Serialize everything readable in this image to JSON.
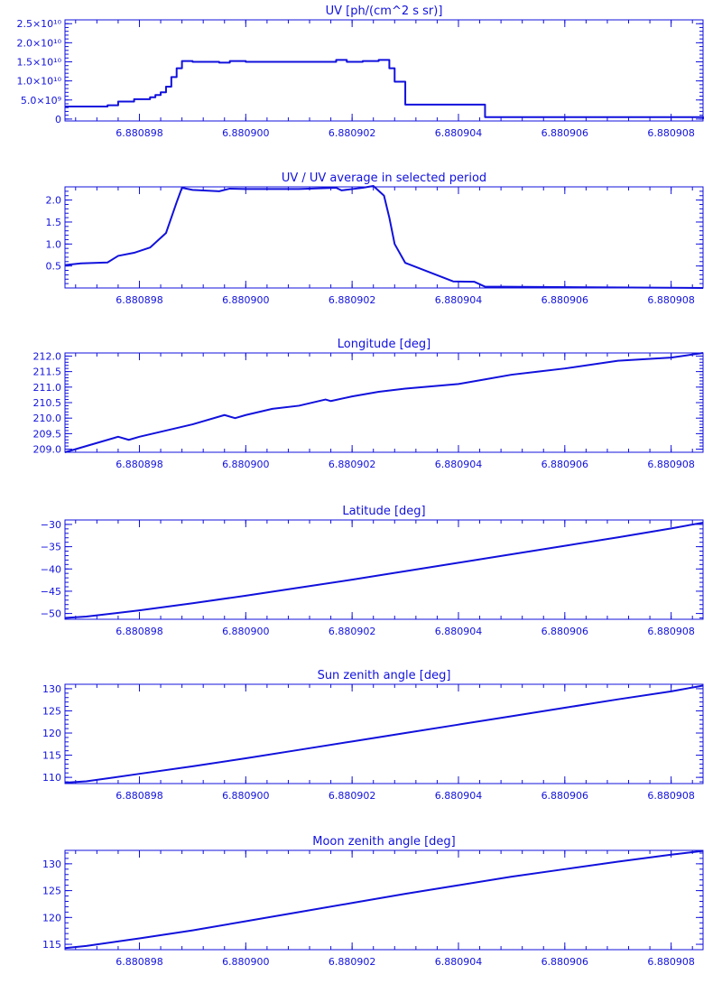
{
  "colors": {
    "axis": "#1111dd",
    "line": "#1111dd",
    "background": "#ffffff"
  },
  "chart_data": [
    {
      "type": "line",
      "title": "UV [ph/(cm^2 s sr)]",
      "xlim": [
        6.8808966,
        6.8809086
      ],
      "ylim": [
        -0.05,
        2.6
      ],
      "y_scale_label": "1e10",
      "x_ticks": [
        6.880898,
        6.8809,
        6.880902,
        6.880904,
        6.880906,
        6.880908
      ],
      "x_tick_labels": [
        "6.880898",
        "6.880900",
        "6.880902",
        "6.880904",
        "6.880906",
        "6.880908"
      ],
      "y_ticks": [
        0,
        0.5,
        1.0,
        1.5,
        2.0,
        2.5
      ],
      "y_tick_labels": [
        "0",
        "5.0×10⁹",
        "1.0×10¹⁰",
        "1.5×10¹⁰",
        "2.0×10¹⁰",
        "2.5×10¹⁰"
      ],
      "step": true,
      "series": [
        {
          "x": [
            6.8808966,
            6.8808974,
            6.8808976,
            6.8808979,
            6.8808982,
            6.8808983,
            6.8808984,
            6.8808985,
            6.8808986,
            6.8808987,
            6.8808988,
            6.880899,
            6.8808995,
            6.8808997,
            6.8809,
            6.880901,
            6.8809017,
            6.8809019,
            6.8809022,
            6.8809025,
            6.8809027,
            6.8809028,
            6.880903,
            6.8809045,
            6.8809086
          ],
          "y": [
            0.33,
            0.36,
            0.46,
            0.52,
            0.57,
            0.63,
            0.7,
            0.85,
            1.1,
            1.33,
            1.52,
            1.5,
            1.48,
            1.52,
            1.5,
            1.5,
            1.55,
            1.5,
            1.52,
            1.55,
            1.33,
            0.98,
            0.38,
            0.05,
            0.0
          ]
        }
      ]
    },
    {
      "type": "line",
      "title": "UV / UV average in selected period",
      "xlim": [
        6.8808966,
        6.8809086
      ],
      "ylim": [
        0.0,
        2.3
      ],
      "x_ticks": [
        6.880898,
        6.8809,
        6.880902,
        6.880904,
        6.880906,
        6.880908
      ],
      "x_tick_labels": [
        "6.880898",
        "6.880900",
        "6.880902",
        "6.880904",
        "6.880906",
        "6.880908"
      ],
      "y_ticks": [
        0.5,
        1.0,
        1.5,
        2.0
      ],
      "y_tick_labels": [
        "0.5",
        "1.0",
        "1.5",
        "2.0"
      ],
      "series": [
        {
          "x": [
            6.8808966,
            6.8808969,
            6.8808974,
            6.8808976,
            6.8808979,
            6.8808982,
            6.8808985,
            6.8808987,
            6.8808988,
            6.880899,
            6.8808995,
            6.8808997,
            6.8809,
            6.880901,
            6.8809017,
            6.8809018,
            6.880902,
            6.8809022,
            6.8809024,
            6.8809026,
            6.8809027,
            6.8809028,
            6.880903,
            6.8809039,
            6.8809043,
            6.8809045,
            6.8809086
          ],
          "y": [
            0.52,
            0.56,
            0.58,
            0.73,
            0.8,
            0.92,
            1.25,
            1.95,
            2.28,
            2.23,
            2.2,
            2.26,
            2.25,
            2.25,
            2.28,
            2.22,
            2.25,
            2.28,
            2.32,
            2.1,
            1.6,
            1.0,
            0.57,
            0.15,
            0.14,
            0.03,
            0.0
          ]
        }
      ]
    },
    {
      "type": "line",
      "title": "Longitude [deg]",
      "xlim": [
        6.8808966,
        6.8809086
      ],
      "ylim": [
        208.9,
        212.1
      ],
      "x_ticks": [
        6.880898,
        6.8809,
        6.880902,
        6.880904,
        6.880906,
        6.880908
      ],
      "x_tick_labels": [
        "6.880898",
        "6.880900",
        "6.880902",
        "6.880904",
        "6.880906",
        "6.880908"
      ],
      "y_ticks": [
        209.0,
        209.5,
        210.0,
        210.5,
        211.0,
        211.5,
        212.0
      ],
      "y_tick_labels": [
        "209.0",
        "209.5",
        "210.0",
        "210.5",
        "211.0",
        "211.5",
        "212.0"
      ],
      "series": [
        {
          "x": [
            6.8808966,
            6.880897,
            6.8808976,
            6.8808978,
            6.880898,
            6.8808985,
            6.880899,
            6.8808996,
            6.8808998,
            6.8809,
            6.8809005,
            6.880901,
            6.8809015,
            6.8809016,
            6.880902,
            6.8809025,
            6.880903,
            6.880904,
            6.8809045,
            6.880905,
            6.8809055,
            6.880906,
            6.880907,
            6.8809075,
            6.880908,
            6.8809086
          ],
          "y": [
            208.9,
            209.1,
            209.4,
            209.3,
            209.4,
            209.6,
            209.8,
            210.1,
            210.0,
            210.1,
            210.3,
            210.4,
            210.6,
            210.55,
            210.7,
            210.85,
            210.95,
            211.1,
            211.25,
            211.4,
            211.5,
            211.6,
            211.85,
            211.9,
            211.95,
            212.1
          ]
        }
      ]
    },
    {
      "type": "line",
      "title": "Latitude [deg]",
      "xlim": [
        6.8808966,
        6.8809086
      ],
      "ylim": [
        -51.3,
        -29.0
      ],
      "x_ticks": [
        6.880898,
        6.8809,
        6.880902,
        6.880904,
        6.880906,
        6.880908
      ],
      "x_tick_labels": [
        "6.880898",
        "6.880900",
        "6.880902",
        "6.880904",
        "6.880906",
        "6.880908"
      ],
      "y_ticks": [
        -50,
        -45,
        -40,
        -35,
        -30
      ],
      "y_tick_labels": [
        "−50",
        "−45",
        "−40",
        "−35",
        "−30"
      ],
      "series": [
        {
          "x": [
            6.8808966,
            6.880897,
            6.880898,
            6.880899,
            6.8809,
            6.880901,
            6.880902,
            6.880903,
            6.880904,
            6.880905,
            6.880906,
            6.880907,
            6.880908,
            6.8809086
          ],
          "y": [
            -51.0,
            -50.7,
            -49.3,
            -47.7,
            -46.0,
            -44.2,
            -42.4,
            -40.5,
            -38.6,
            -36.7,
            -34.8,
            -32.9,
            -30.9,
            -29.6
          ]
        }
      ]
    },
    {
      "type": "line",
      "title": "Sun zenith angle [deg]",
      "xlim": [
        6.8808966,
        6.8809086
      ],
      "ylim": [
        108.6,
        131.0
      ],
      "x_ticks": [
        6.880898,
        6.8809,
        6.880902,
        6.880904,
        6.880906,
        6.880908
      ],
      "x_tick_labels": [
        "6.880898",
        "6.880900",
        "6.880902",
        "6.880904",
        "6.880906",
        "6.880908"
      ],
      "y_ticks": [
        110,
        115,
        120,
        125,
        130
      ],
      "y_tick_labels": [
        "110",
        "115",
        "120",
        "125",
        "130"
      ],
      "series": [
        {
          "x": [
            6.8808966,
            6.880897,
            6.880898,
            6.880899,
            6.8809,
            6.880901,
            6.880902,
            6.880903,
            6.880904,
            6.880905,
            6.880906,
            6.880907,
            6.880908,
            6.8809086
          ],
          "y": [
            108.8,
            109.1,
            110.8,
            112.5,
            114.3,
            116.2,
            118.1,
            120.0,
            121.9,
            123.8,
            125.7,
            127.6,
            129.4,
            130.7
          ]
        }
      ]
    },
    {
      "type": "line",
      "title": "Moon zenith angle [deg]",
      "xlim": [
        6.8808966,
        6.8809086
      ],
      "ylim": [
        114.0,
        132.5
      ],
      "x_ticks": [
        6.880898,
        6.8809,
        6.880902,
        6.880904,
        6.880906,
        6.880908
      ],
      "x_tick_labels": [
        "6.880898",
        "6.880900",
        "6.880902",
        "6.880904",
        "6.880906",
        "6.880908"
      ],
      "y_ticks": [
        115,
        120,
        125,
        130
      ],
      "y_tick_labels": [
        "115",
        "120",
        "125",
        "130"
      ],
      "series": [
        {
          "x": [
            6.8808966,
            6.880897,
            6.880898,
            6.880899,
            6.8809,
            6.880901,
            6.880902,
            6.880903,
            6.880904,
            6.880905,
            6.880906,
            6.880907,
            6.880908,
            6.8809086
          ],
          "y": [
            114.3,
            114.7,
            116.1,
            117.6,
            119.3,
            121.0,
            122.7,
            124.4,
            126.0,
            127.6,
            129.0,
            130.4,
            131.7,
            132.4
          ]
        }
      ]
    }
  ]
}
